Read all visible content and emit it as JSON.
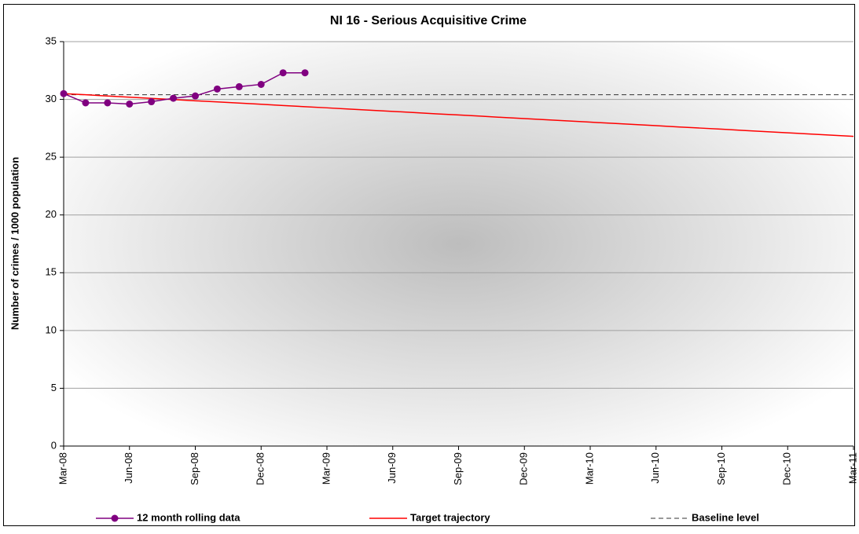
{
  "chart_data": {
    "type": "line",
    "title": "NI 16 - Serious Acquisitive Crime",
    "y_label": "Number of crimes / 1000 population",
    "categories": [
      "Mar-08",
      null,
      null,
      "Jun-08",
      null,
      null,
      "Sep-08",
      null,
      null,
      "Dec-08",
      null,
      null,
      "Mar-09",
      null,
      null,
      "Jun-09",
      null,
      null,
      "Sep-09",
      null,
      null,
      "Dec-09",
      null,
      null,
      "Mar-10",
      null,
      null,
      "Jun-10",
      null,
      null,
      "Sep-10",
      null,
      null,
      "Dec-10",
      null,
      null,
      "Mar-11"
    ],
    "ylim": [
      0,
      35
    ],
    "yticks": [
      0,
      5,
      10,
      15,
      20,
      25,
      30,
      35
    ],
    "grid": true,
    "series": [
      {
        "name": "12 month rolling data",
        "color": "#800080",
        "markers": true,
        "dash": false,
        "values": [
          30.5,
          29.7,
          29.7,
          29.6,
          29.8,
          30.1,
          30.3,
          30.9,
          31.1,
          31.3,
          32.3,
          32.3,
          null,
          null,
          null,
          null,
          null,
          null,
          null,
          null,
          null,
          null,
          null,
          null,
          null,
          null,
          null,
          null,
          null,
          null,
          null,
          null,
          null,
          null,
          null,
          null,
          null
        ]
      },
      {
        "name": "Target trajectory",
        "color": "#ff0000",
        "markers": false,
        "dash": false,
        "values": [
          30.5,
          30.4,
          30.29,
          30.19,
          30.09,
          29.99,
          29.88,
          29.78,
          29.68,
          29.58,
          29.47,
          29.37,
          29.27,
          29.16,
          29.06,
          28.96,
          28.86,
          28.75,
          28.65,
          28.55,
          28.44,
          28.34,
          28.24,
          28.14,
          28.03,
          27.93,
          27.83,
          27.73,
          27.62,
          27.52,
          27.42,
          27.31,
          27.21,
          27.11,
          27.01,
          26.9,
          26.8
        ]
      },
      {
        "name": "Baseline level",
        "color": "#333333",
        "markers": false,
        "dash": true,
        "values": [
          30.4,
          30.4,
          30.4,
          30.4,
          30.4,
          30.4,
          30.4,
          30.4,
          30.4,
          30.4,
          30.4,
          30.4,
          30.4,
          30.4,
          30.4,
          30.4,
          30.4,
          30.4,
          30.4,
          30.4,
          30.4,
          30.4,
          30.4,
          30.4,
          30.4,
          30.4,
          30.4,
          30.4,
          30.4,
          30.4,
          30.4,
          30.4,
          30.4,
          30.4,
          30.4,
          30.4,
          30.4
        ]
      }
    ]
  }
}
